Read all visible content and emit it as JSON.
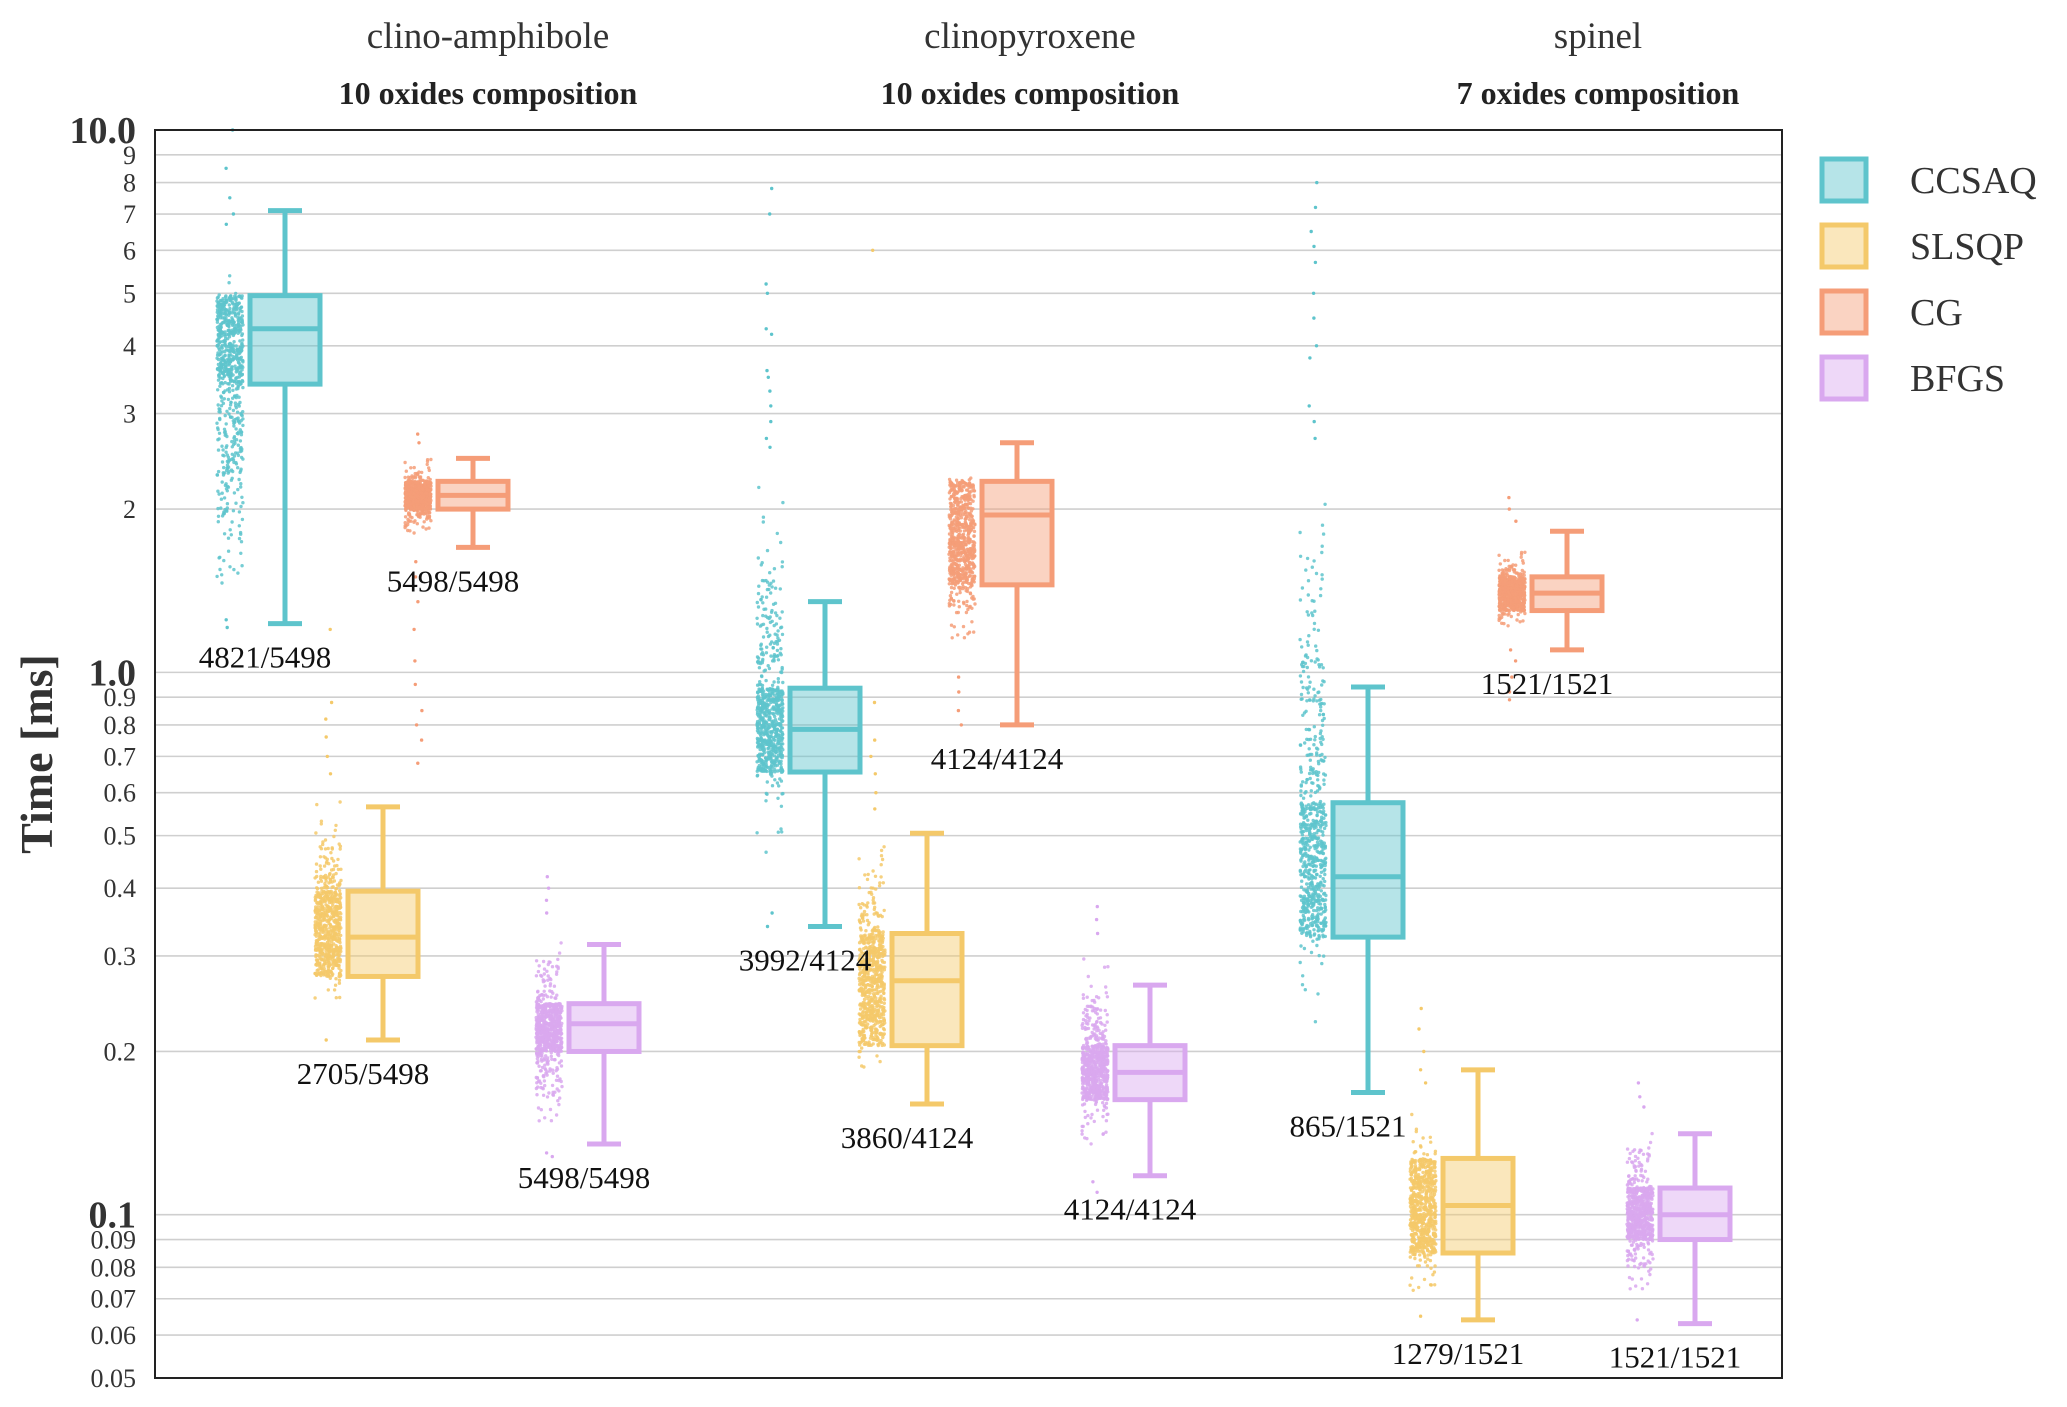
{
  "chart_data": {
    "type": "box",
    "ylabel": "Time [ms]",
    "yscale": "log",
    "ylim": [
      0.05,
      10.0
    ],
    "y_major_ticks": [
      {
        "value": 10.0,
        "label": "10.0"
      },
      {
        "value": 1.0,
        "label": "1.0"
      },
      {
        "value": 0.1,
        "label": "0.1"
      }
    ],
    "y_minor_ticks": [
      {
        "value": 9,
        "label": "9"
      },
      {
        "value": 8,
        "label": "8"
      },
      {
        "value": 7,
        "label": "7"
      },
      {
        "value": 6,
        "label": "6"
      },
      {
        "value": 5,
        "label": "5"
      },
      {
        "value": 4,
        "label": "4"
      },
      {
        "value": 3,
        "label": "3"
      },
      {
        "value": 2,
        "label": "2"
      },
      {
        "value": 0.9,
        "label": "0.9"
      },
      {
        "value": 0.8,
        "label": "0.8"
      },
      {
        "value": 0.7,
        "label": "0.7"
      },
      {
        "value": 0.6,
        "label": "0.6"
      },
      {
        "value": 0.5,
        "label": "0.5"
      },
      {
        "value": 0.4,
        "label": "0.4"
      },
      {
        "value": 0.3,
        "label": "0.3"
      },
      {
        "value": 0.2,
        "label": "0.2"
      },
      {
        "value": 0.09,
        "label": "0.09"
      },
      {
        "value": 0.08,
        "label": "0.08"
      },
      {
        "value": 0.07,
        "label": "0.07"
      },
      {
        "value": 0.06,
        "label": "0.06"
      },
      {
        "value": 0.05,
        "label": "0.05"
      }
    ],
    "colors": {
      "CCSAQ": "#5ec4cc",
      "SLSQP": "#f4c96a",
      "CG": "#f59d78",
      "BFGS": "#d9a8ef"
    },
    "legend": {
      "position": "right",
      "entries": [
        "CCSAQ",
        "SLSQP",
        "CG",
        "BFGS"
      ]
    },
    "groups": [
      {
        "title": "clino-amphibole",
        "subtitle": "10 oxides composition",
        "boxes": [
          {
            "method": "CCSAQ",
            "whisker_low": 1.23,
            "q1": 3.4,
            "median": 4.3,
            "q3": 4.95,
            "whisker_high": 7.1,
            "scatter_low": 1.2,
            "scatter_high": 6.3,
            "outliers": [
              10.0,
              8.5,
              7.5,
              7.0,
              6.7,
              1.25,
              1.21
            ],
            "count_label": "4821/5498"
          },
          {
            "method": "SLSQP",
            "whisker_low": 0.21,
            "q1": 0.275,
            "median": 0.325,
            "q3": 0.395,
            "whisker_high": 0.565,
            "scatter_low": 0.22,
            "scatter_high": 0.6,
            "outliers": [
              1.2,
              0.88,
              0.82,
              0.76,
              0.7,
              0.65,
              0.21
            ],
            "count_label": "2705/5498"
          },
          {
            "method": "CG",
            "whisker_low": 1.7,
            "q1": 2.0,
            "median": 2.12,
            "q3": 2.25,
            "whisker_high": 2.48,
            "scatter_low": 1.75,
            "scatter_high": 2.55,
            "outliers": [
              2.75,
              2.65,
              1.6,
              1.5,
              1.35,
              1.2,
              1.05,
              0.95,
              0.85,
              0.8,
              0.75,
              0.68
            ],
            "count_label": "5498/5498"
          },
          {
            "method": "BFGS",
            "whisker_low": 0.135,
            "q1": 0.2,
            "median": 0.225,
            "q3": 0.245,
            "whisker_high": 0.315,
            "scatter_low": 0.135,
            "scatter_high": 0.34,
            "outliers": [
              0.42,
              0.4,
              0.38,
              0.36,
              0.13,
              0.128
            ],
            "count_label": "5498/5498"
          }
        ]
      },
      {
        "title": "clinopyroxene",
        "subtitle": "10 oxides composition",
        "boxes": [
          {
            "method": "CCSAQ",
            "whisker_low": 0.34,
            "q1": 0.655,
            "median": 0.785,
            "q3": 0.935,
            "whisker_high": 1.35,
            "scatter_low": 0.4,
            "scatter_high": 2.4,
            "outliers": [
              7.8,
              7.0,
              5.2,
              5.0,
              4.3,
              4.2,
              3.6,
              3.5,
              3.3,
              3.1,
              2.9,
              2.7,
              2.6,
              0.36,
              0.34
            ],
            "count_label": "3992/4124"
          },
          {
            "method": "SLSQP",
            "whisker_low": 0.16,
            "q1": 0.205,
            "median": 0.27,
            "q3": 0.33,
            "whisker_high": 0.505,
            "scatter_low": 0.165,
            "scatter_high": 0.52,
            "outliers": [
              6.0,
              0.88,
              0.75,
              0.7,
              0.65,
              0.6,
              0.56
            ],
            "count_label": "3860/4124"
          },
          {
            "method": "CG",
            "whisker_low": 0.8,
            "q1": 1.45,
            "median": 1.95,
            "q3": 2.25,
            "whisker_high": 2.65,
            "scatter_low": 1.05,
            "scatter_high": 2.62,
            "outliers": [
              0.98,
              0.92,
              0.85,
              0.8
            ],
            "count_label": "4124/4124"
          },
          {
            "method": "BFGS",
            "whisker_low": 0.118,
            "q1": 0.163,
            "median": 0.183,
            "q3": 0.205,
            "whisker_high": 0.265,
            "scatter_low": 0.125,
            "scatter_high": 0.31,
            "outliers": [
              0.37,
              0.35,
              0.33,
              0.115,
              0.11
            ],
            "count_label": "4124/4124"
          }
        ]
      },
      {
        "title": "spinel",
        "subtitle": "7 oxides composition",
        "boxes": [
          {
            "method": "CCSAQ",
            "whisker_low": 0.168,
            "q1": 0.325,
            "median": 0.42,
            "q3": 0.575,
            "whisker_high": 0.94,
            "scatter_low": 0.17,
            "scatter_high": 2.5,
            "outliers": [
              8.0,
              7.2,
              6.5,
              6.1,
              5.7,
              5.0,
              4.5,
              4.0,
              3.8,
              3.1,
              2.9,
              2.7
            ],
            "count_label": "865/1521"
          },
          {
            "method": "SLSQP",
            "whisker_low": 0.064,
            "q1": 0.085,
            "median": 0.104,
            "q3": 0.127,
            "whisker_high": 0.185,
            "scatter_low": 0.066,
            "scatter_high": 0.16,
            "outliers": [
              0.24,
              0.22,
              0.2,
              0.185,
              0.175,
              0.065
            ],
            "count_label": "1279/1521"
          },
          {
            "method": "CG",
            "whisker_low": 1.1,
            "q1": 1.3,
            "median": 1.4,
            "q3": 1.5,
            "whisker_high": 1.82,
            "scatter_low": 1.18,
            "scatter_high": 1.72,
            "outliers": [
              2.1,
              2.0,
              1.9,
              1.1,
              1.05,
              0.98,
              0.92,
              0.89
            ],
            "count_label": "1521/1521"
          },
          {
            "method": "BFGS",
            "whisker_low": 0.063,
            "q1": 0.09,
            "median": 0.1,
            "q3": 0.112,
            "whisker_high": 0.141,
            "scatter_low": 0.067,
            "scatter_high": 0.15,
            "outliers": [
              0.175,
              0.165,
              0.158,
              0.064
            ],
            "count_label": "1521/1521"
          }
        ]
      }
    ]
  }
}
